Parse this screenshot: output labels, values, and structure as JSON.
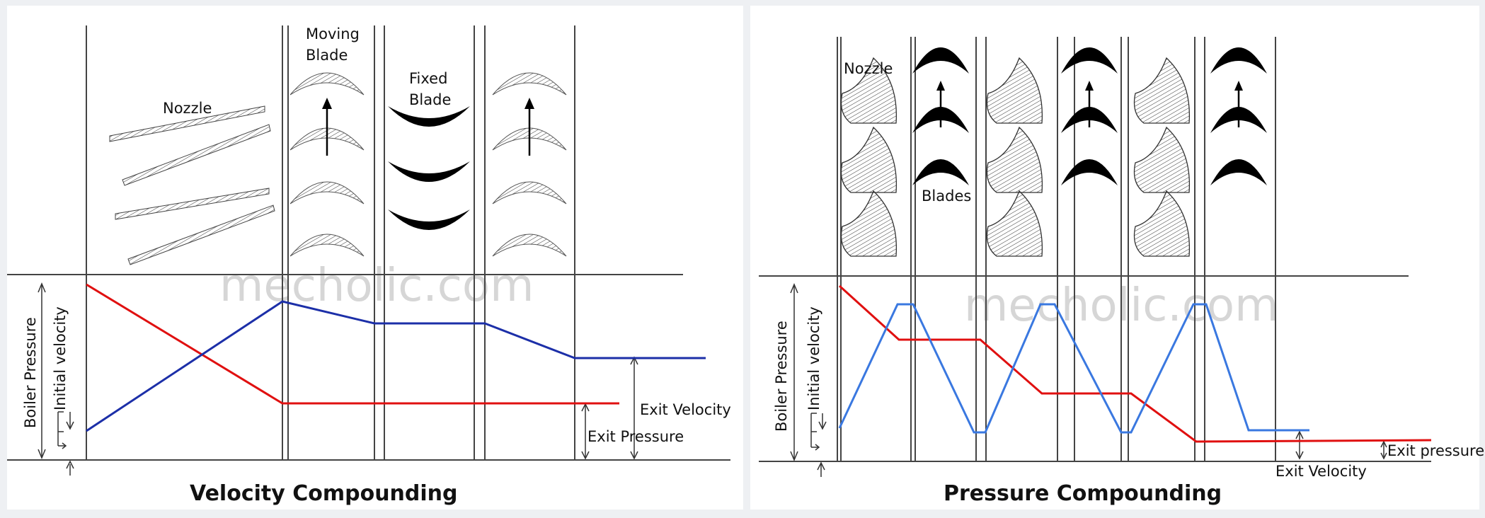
{
  "watermark": "mecholic.com",
  "colors": {
    "pressure_line": "#e01010",
    "velocity_line_left": "#1c2fa8",
    "velocity_line_right": "#3a78e0",
    "blade_fill": "#000000"
  },
  "left_diagram": {
    "title": "Velocity Compounding",
    "labels": {
      "nozzle": "Nozzle",
      "moving_blade_1": "Moving",
      "moving_blade_2": "Blade",
      "fixed_blade_1": "Fixed",
      "fixed_blade_2": "Blade",
      "boiler_pressure": "Boiler Pressure",
      "initial_velocity": "Initial velocity",
      "exit_velocity": "Exit Velocity",
      "exit_pressure": "Exit Pressure"
    }
  },
  "right_diagram": {
    "title": "Pressure Compounding",
    "labels": {
      "nozzle": "Nozzle",
      "blades": "Blades",
      "boiler_pressure": "Boiler Pressure",
      "initial_velocity": "Initial velocity",
      "exit_pressure": "Exit pressure",
      "exit_velocity": "Exit Velocity"
    }
  }
}
